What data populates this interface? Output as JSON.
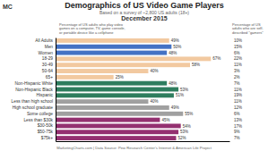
{
  "chart_data": {
    "type": "bar",
    "orientation": "horizontal",
    "title": "Demographics of US Video Game Players",
    "subtitle": "Based on a survey of ~2,800 US adults (18+)",
    "annotations": [
      "December 2015",
      "Percentage of US adults who play video\ngames on a computer, TV, game console,\nor portable device like a cellphone",
      "Percentage of US\nadults who are self-\ndescribed \"gamers\"",
      "MarketingCharts.com | Data Source: Pew Research Center's Internet & American Life Project",
      "MC"
    ],
    "categories": [
      "All Adults",
      "Men",
      "Women",
      "18-29",
      "30-49",
      "50-64",
      "65+",
      "Non-Hispanic White",
      "Non-Hispanic Black",
      "Hispanic",
      "Less than high school",
      "High school graduate",
      "Some college",
      "Less than $30k",
      "$30-50k",
      "$50-75k",
      "$75k+"
    ],
    "values": [
      49,
      50,
      48,
      67,
      58,
      40,
      25,
      48,
      53,
      51,
      40,
      49,
      55,
      45,
      54,
      53,
      52
    ],
    "value_labels": [
      "49%",
      "50%",
      "48%",
      "67%",
      "58%",
      "40%",
      "25%",
      "48%",
      "53%",
      "51%",
      "40%",
      "49%",
      "55%",
      "45%",
      "54%",
      "53%",
      "52%"
    ],
    "data_labels": true,
    "colors": [
      "#f2c9a0",
      "#4472c4",
      "#4472c4",
      "#f2c9a0",
      "#f2c9a0",
      "#f2c9a0",
      "#f2c9a0",
      "#2e7d5e",
      "#2e7d5e",
      "#2e7d5e",
      "#a0a0a0",
      "#a0a0a0",
      "#a0a0a0",
      "#943070",
      "#943070",
      "#943070",
      "#943070"
    ],
    "gamers_values": [
      10,
      15,
      6,
      22,
      11,
      3,
      2,
      7,
      11,
      19,
      11,
      12,
      6,
      13,
      17,
      9,
      7
    ],
    "gamers_value_labels": [
      "10%",
      "15%",
      "6%",
      "22%",
      "11%",
      "3%",
      "2%",
      "7%",
      "11%",
      "19%",
      "11%",
      "12%",
      "6%",
      "13%",
      "17%",
      "9%",
      "7%"
    ],
    "xlim": [
      0,
      75
    ],
    "xticks": [],
    "tick_labels": "y",
    "grid": false
  }
}
